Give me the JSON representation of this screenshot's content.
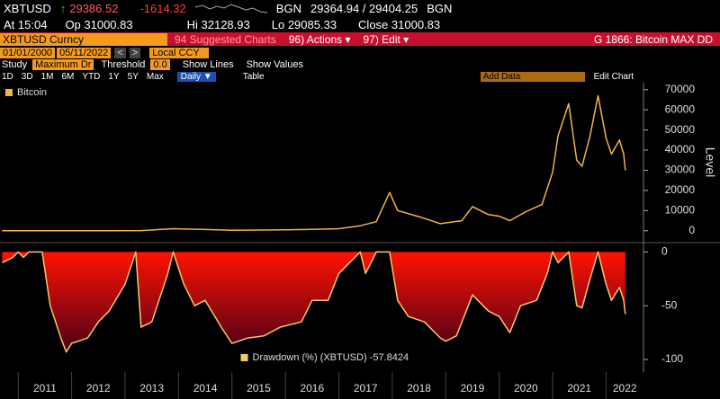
{
  "header": {
    "ticker": "XBTUSD",
    "last": "29386.52",
    "change": "-1614.32",
    "source1": "BGN",
    "bid_ask": "29364.94 / 29404.25",
    "source2": "BGN",
    "time": "At 15:04",
    "open": "Op 31000.83",
    "high": "Hi 32128.93",
    "low": "Lo 29085.33",
    "close": "Close 31000.83"
  },
  "toolbar": {
    "security": "XBTUSD Curncy",
    "suggested": "94 Suggested Charts",
    "actions": "96) Actions ▾",
    "edit": "97) Edit ▾",
    "chart_name": "G 1866: Bitcoin MAX DD"
  },
  "range": {
    "start": "01/01/2000",
    "end": "05/11/2022",
    "currency": "Local CCY"
  },
  "study": {
    "label": "Study",
    "name": "Maximum Dr",
    "threshold_label": "Threshold",
    "threshold": "0.0",
    "lines": "Show Lines",
    "values": "Show Values"
  },
  "controls": {
    "periods": [
      "1D",
      "3D",
      "1M",
      "6M",
      "YTD",
      "1Y",
      "5Y",
      "Max"
    ],
    "frequency": "Daily ▼",
    "table": "Table",
    "add_data": "Add Data",
    "edit_chart": "Edit Chart"
  },
  "chart_data": [
    {
      "type": "line",
      "y_label": "Level",
      "legend": "top-left",
      "x": [
        2010.7,
        2011.5,
        2012.5,
        2013.3,
        2013.9,
        2014.5,
        2015.0,
        2016.0,
        2016.5,
        2017.0,
        2017.4,
        2017.7,
        2017.95,
        2018.1,
        2018.5,
        2018.9,
        2019.3,
        2019.5,
        2019.8,
        2020.0,
        2020.2,
        2020.5,
        2020.8,
        2021.0,
        2021.1,
        2021.3,
        2021.45,
        2021.55,
        2021.7,
        2021.85,
        2022.0,
        2022.1,
        2022.25,
        2022.33,
        2022.36
      ],
      "series": [
        {
          "name": "Bitcoin",
          "color": "#f0b44a",
          "values": [
            0,
            15,
            7,
            100,
            1000,
            600,
            250,
            430,
            650,
            1000,
            2500,
            4500,
            19000,
            10000,
            7000,
            3500,
            5000,
            12000,
            8000,
            7200,
            5000,
            9500,
            13000,
            29000,
            47000,
            63000,
            35000,
            32000,
            47000,
            67000,
            46000,
            38000,
            45000,
            38000,
            30000
          ]
        }
      ],
      "xlim": [
        2010.66,
        2022.7
      ],
      "ylim": [
        -5000,
        73000
      ],
      "yticks": [
        0,
        10000,
        20000,
        30000,
        40000,
        50000,
        60000,
        70000
      ]
    },
    {
      "type": "area",
      "legend": "bottom-center",
      "x": [
        2010.7,
        2010.9,
        2011.0,
        2011.1,
        2011.2,
        2011.45,
        2011.6,
        2011.8,
        2011.9,
        2012.0,
        2012.3,
        2012.5,
        2012.7,
        2013.0,
        2013.2,
        2013.3,
        2013.5,
        2013.8,
        2013.9,
        2014.1,
        2014.3,
        2014.5,
        2014.8,
        2015.0,
        2015.3,
        2015.6,
        2015.9,
        2016.3,
        2016.5,
        2016.8,
        2017.0,
        2017.2,
        2017.4,
        2017.5,
        2017.7,
        2017.95,
        2018.1,
        2018.3,
        2018.6,
        2018.9,
        2019.0,
        2019.2,
        2019.5,
        2019.8,
        2020.0,
        2020.2,
        2020.4,
        2020.7,
        2020.9,
        2021.0,
        2021.1,
        2021.3,
        2021.45,
        2021.55,
        2021.7,
        2021.85,
        2022.0,
        2022.1,
        2022.25,
        2022.33,
        2022.36
      ],
      "series": [
        {
          "name": "Drawdown (%) (XBTUSD) -57.8424",
          "color": "#f5c96a",
          "fill_top": "#ff1200",
          "fill_bottom": "#4a0018",
          "values": [
            -10,
            -5,
            0,
            -5,
            0,
            0,
            -50,
            -80,
            -93,
            -85,
            -80,
            -65,
            -55,
            -30,
            0,
            -70,
            -65,
            -20,
            0,
            -30,
            -50,
            -45,
            -70,
            -85,
            -80,
            -78,
            -70,
            -65,
            -45,
            -45,
            -20,
            -10,
            0,
            -20,
            0,
            0,
            -45,
            -60,
            -65,
            -80,
            -83,
            -78,
            -40,
            -55,
            -60,
            -75,
            -50,
            -45,
            -20,
            0,
            -10,
            0,
            -50,
            -52,
            -25,
            0,
            -30,
            -45,
            -33,
            -45,
            -57.8424
          ]
        }
      ],
      "xlim": [
        2010.66,
        2022.7
      ],
      "ylim": [
        -110,
        7
      ],
      "yticks": [
        0,
        -50,
        -100
      ],
      "xticks": [
        2011,
        2012,
        2013,
        2014,
        2015,
        2016,
        2017,
        2018,
        2019,
        2020,
        2021,
        2022
      ]
    }
  ]
}
